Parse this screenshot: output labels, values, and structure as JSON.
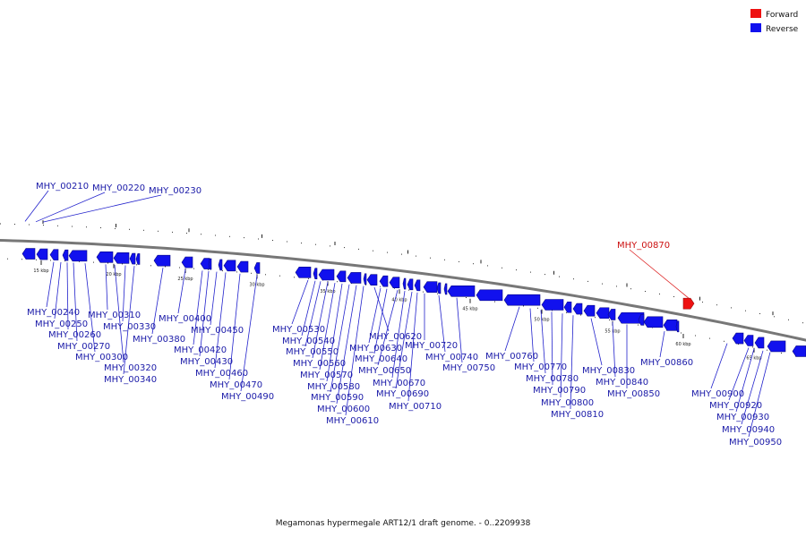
{
  "legend": {
    "forward_label": "Forward",
    "reverse_label": "Reverse",
    "forward_color": "#ee1111",
    "reverse_color": "#1111ee"
  },
  "caption": "Megamonas hypermegale ART12/1 draft genome. - 0..2209938",
  "colors": {
    "backbone": "#777777",
    "label": "#1a1aa8",
    "label_forward": "#cc1111",
    "leader": "#2222cc",
    "leader_forward": "#dd2222"
  },
  "ticks": [
    "15 kbp",
    "20 kbp",
    "25 kbp",
    "30 kbp",
    "35 kbp",
    "40 kbp",
    "45 kbp",
    "50 kbp",
    "55 kbp",
    "60 kbp",
    "65 kbp"
  ],
  "genes": [
    {
      "name": "MHY_00210",
      "strand": "reverse"
    },
    {
      "name": "MHY_00220",
      "strand": "reverse"
    },
    {
      "name": "MHY_00230",
      "strand": "reverse"
    },
    {
      "name": "MHY_00240",
      "strand": "reverse"
    },
    {
      "name": "MHY_00250",
      "strand": "reverse"
    },
    {
      "name": "MHY_00260",
      "strand": "reverse"
    },
    {
      "name": "MHY_00270",
      "strand": "reverse"
    },
    {
      "name": "MHY_00300",
      "strand": "reverse"
    },
    {
      "name": "MHY_00310",
      "strand": "reverse"
    },
    {
      "name": "MHY_00320",
      "strand": "reverse"
    },
    {
      "name": "MHY_00330",
      "strand": "reverse"
    },
    {
      "name": "MHY_00340",
      "strand": "reverse"
    },
    {
      "name": "MHY_00380",
      "strand": "reverse"
    },
    {
      "name": "MHY_00400",
      "strand": "reverse"
    },
    {
      "name": "MHY_00420",
      "strand": "reverse"
    },
    {
      "name": "MHY_00430",
      "strand": "reverse"
    },
    {
      "name": "MHY_00450",
      "strand": "reverse"
    },
    {
      "name": "MHY_00460",
      "strand": "reverse"
    },
    {
      "name": "MHY_00470",
      "strand": "reverse"
    },
    {
      "name": "MHY_00490",
      "strand": "reverse"
    },
    {
      "name": "MHY_00530",
      "strand": "reverse"
    },
    {
      "name": "MHY_00540",
      "strand": "reverse"
    },
    {
      "name": "MHY_00550",
      "strand": "reverse"
    },
    {
      "name": "MHY_00560",
      "strand": "reverse"
    },
    {
      "name": "MHY_00570",
      "strand": "reverse"
    },
    {
      "name": "MHY_00580",
      "strand": "reverse"
    },
    {
      "name": "MHY_00590",
      "strand": "reverse"
    },
    {
      "name": "MHY_00600",
      "strand": "reverse"
    },
    {
      "name": "MHY_00610",
      "strand": "reverse"
    },
    {
      "name": "MHY_00620",
      "strand": "reverse"
    },
    {
      "name": "MHY_00630",
      "strand": "reverse"
    },
    {
      "name": "MHY_00640",
      "strand": "reverse"
    },
    {
      "name": "MHY_00650",
      "strand": "reverse"
    },
    {
      "name": "MHY_00670",
      "strand": "reverse"
    },
    {
      "name": "MHY_00690",
      "strand": "reverse"
    },
    {
      "name": "MHY_00710",
      "strand": "reverse"
    },
    {
      "name": "MHY_00720",
      "strand": "reverse"
    },
    {
      "name": "MHY_00740",
      "strand": "reverse"
    },
    {
      "name": "MHY_00750",
      "strand": "reverse"
    },
    {
      "name": "MHY_00760",
      "strand": "reverse"
    },
    {
      "name": "MHY_00770",
      "strand": "reverse"
    },
    {
      "name": "MHY_00780",
      "strand": "reverse"
    },
    {
      "name": "MHY_00790",
      "strand": "reverse"
    },
    {
      "name": "MHY_00800",
      "strand": "reverse"
    },
    {
      "name": "MHY_00810",
      "strand": "reverse"
    },
    {
      "name": "MHY_00830",
      "strand": "reverse"
    },
    {
      "name": "MHY_00840",
      "strand": "reverse"
    },
    {
      "name": "MHY_00850",
      "strand": "reverse"
    },
    {
      "name": "MHY_00860",
      "strand": "reverse"
    },
    {
      "name": "MHY_00870",
      "strand": "forward"
    },
    {
      "name": "MHY_00900",
      "strand": "reverse"
    },
    {
      "name": "MHY_00920",
      "strand": "reverse"
    },
    {
      "name": "MHY_00930",
      "strand": "reverse"
    },
    {
      "name": "MHY_00940",
      "strand": "reverse"
    },
    {
      "name": "MHY_00950",
      "strand": "reverse"
    }
  ]
}
